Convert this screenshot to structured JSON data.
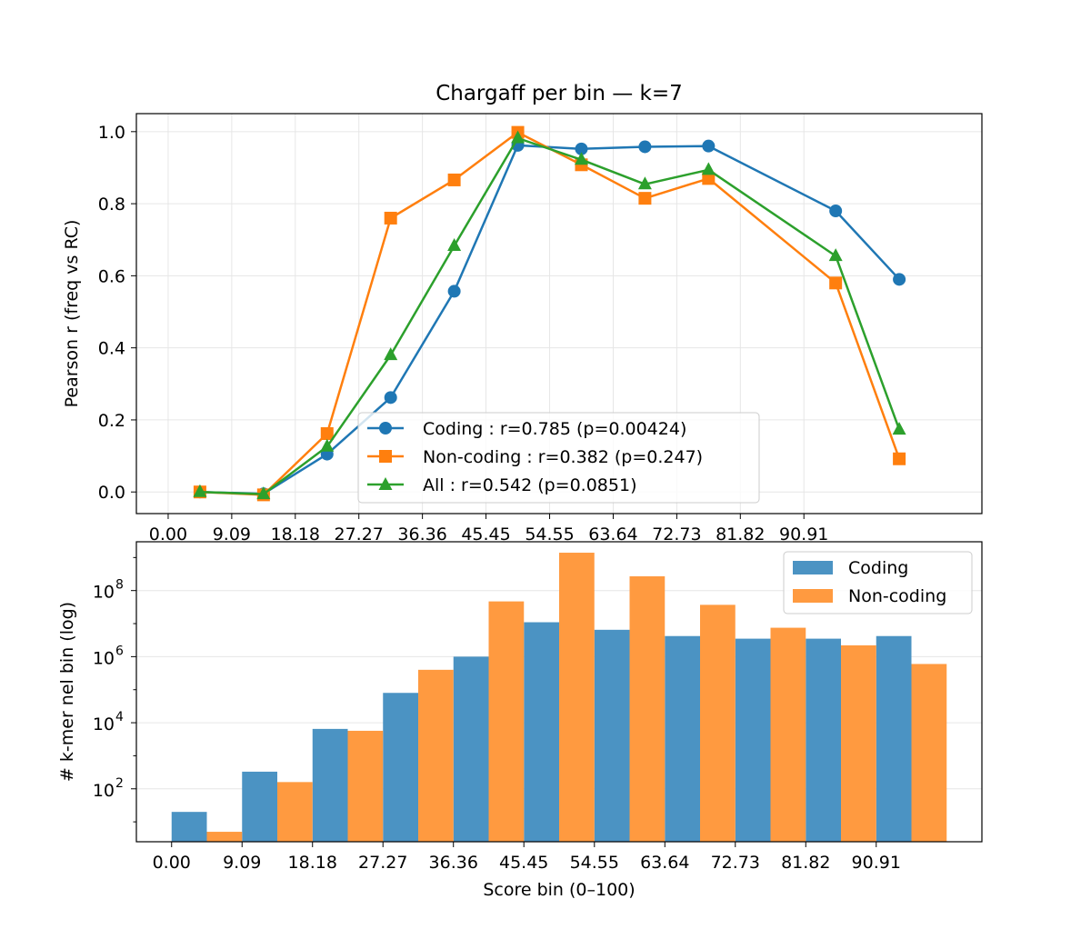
{
  "chart_data": [
    {
      "type": "line",
      "title": "Chargaff per bin — k=7",
      "xlabel": "",
      "ylabel": "Pearson r (freq vs RC)",
      "xlim": [
        -4.5454,
        116.3636
      ],
      "ylim": [
        -0.06,
        1.05
      ],
      "xticks": [
        0,
        9.09,
        18.18,
        27.27,
        36.36,
        45.45,
        54.55,
        63.64,
        72.73,
        81.82,
        90.91
      ],
      "xtick_labels": [
        "0.00",
        "9.09",
        "18.18",
        "27.27",
        "36.36",
        "45.45",
        "54.55",
        "63.64",
        "72.73",
        "81.82",
        "90.91"
      ],
      "yticks": [
        0.0,
        0.2,
        0.4,
        0.6,
        0.8,
        1.0
      ],
      "ytick_labels": [
        "0.0",
        "0.2",
        "0.4",
        "0.6",
        "0.8",
        "1.0"
      ],
      "grid": true,
      "legend_position": "lower-center",
      "x": [
        4.5454,
        13.6364,
        22.7273,
        31.8182,
        40.9091,
        50.0,
        59.0909,
        68.1818,
        77.2727,
        86.3636,
        95.4545,
        104.5454
      ],
      "series": [
        {
          "name": "Coding : r=0.785 (p=0.00424)",
          "color": "#1f77b4",
          "marker": "circle",
          "values": [
            0.0,
            -0.005,
            0.105,
            0.262,
            0.557,
            0.962,
            0.952,
            0.958,
            0.96,
            null,
            0.78,
            0.59
          ]
        },
        {
          "name": "Non-coding : r=0.382 (p=0.247)",
          "color": "#ff7f0e",
          "marker": "square",
          "values": [
            0.0,
            -0.008,
            0.162,
            0.76,
            0.866,
            0.998,
            0.908,
            0.815,
            0.87,
            null,
            0.58,
            0.092
          ]
        },
        {
          "name": "All : r=0.542 (p=0.0851)",
          "color": "#2ca02c",
          "marker": "triangle",
          "values": [
            0.0,
            -0.006,
            0.126,
            0.38,
            0.683,
            0.982,
            0.922,
            0.854,
            0.894,
            null,
            0.655,
            0.173
          ]
        }
      ]
    },
    {
      "type": "bar",
      "title": "",
      "xlabel": "Score bin (0–100)",
      "ylabel": "# k-mer nel bin (log)",
      "yscale": "log",
      "xlim": [
        -4.5454,
        104.5454
      ],
      "ylim": [
        2.5,
        3000000000
      ],
      "xticks": [
        0,
        9.09,
        18.18,
        27.27,
        36.36,
        45.45,
        54.55,
        63.64,
        72.73,
        81.82,
        90.91
      ],
      "xtick_labels": [
        "0.00",
        "9.09",
        "18.18",
        "27.27",
        "36.36",
        "45.45",
        "54.55",
        "63.64",
        "72.73",
        "81.82",
        "90.91"
      ],
      "yticks": [
        100,
        10000,
        1000000,
        100000000
      ],
      "ytick_labels": [
        {
          "base": "10",
          "exp": "2"
        },
        {
          "base": "10",
          "exp": "4"
        },
        {
          "base": "10",
          "exp": "6"
        },
        {
          "base": "10",
          "exp": "8"
        }
      ],
      "grid": true,
      "legend_position": "top-right",
      "bin_starts": [
        0,
        9.0909,
        18.1818,
        27.2727,
        36.3636,
        45.4545,
        54.5454,
        63.6364,
        72.7273,
        81.8182,
        90.9091
      ],
      "bin_width": 9.0909,
      "series": [
        {
          "name": "Coding",
          "color": "#4b93c3",
          "values": [
            20,
            330,
            6500,
            80000,
            1000000,
            11000000,
            6500000,
            4200000,
            3500000,
            3500000,
            4200000
          ]
        },
        {
          "name": "Non-coding",
          "color": "#ff9a40",
          "values": [
            5,
            160,
            5700,
            400000,
            47000000,
            1400000000,
            270000000,
            37000000,
            7500000,
            2200000,
            600000
          ]
        }
      ]
    }
  ]
}
